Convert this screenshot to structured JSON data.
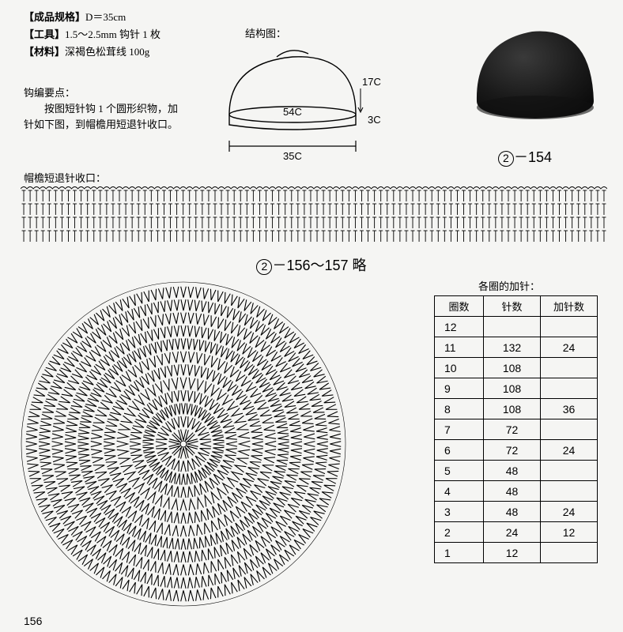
{
  "specs": {
    "line1_label": "【成品规格】",
    "line1_value": "D＝35cm",
    "line2_label": "【工具】",
    "line2_value": "1.5～2.5mm 钩针 1 枚",
    "line3_label": "【材料】",
    "line3_value": "深褐色松茸线 100g"
  },
  "instructions": {
    "title": "钩编要点：",
    "body": "　　按图短针钩 1 个圆形织物，加针如下图，到帽檐用短退针收口。"
  },
  "structure": {
    "label": "结构图：",
    "height_label": "17C",
    "brim_label": "3C",
    "circumference_label": "54C",
    "width_label": "35C"
  },
  "photo_ref": {
    "num": "2",
    "suffix": "－154"
  },
  "brim_section": {
    "label": "帽檐短退针收口：",
    "rows": 4,
    "cols": 92
  },
  "mid_title": {
    "num": "2",
    "suffix": "－156～157 略"
  },
  "table": {
    "title": "各圈的加针：",
    "headers": [
      "圈数",
      "针数",
      "加针数"
    ],
    "rows": [
      {
        "round": "12",
        "stitches": "",
        "increase": ""
      },
      {
        "round": "11",
        "stitches": "132",
        "increase": "24"
      },
      {
        "round": "10",
        "stitches": "108",
        "increase": ""
      },
      {
        "round": "9",
        "stitches": "108",
        "increase": ""
      },
      {
        "round": "8",
        "stitches": "108",
        "increase": "36"
      },
      {
        "round": "7",
        "stitches": "72",
        "increase": ""
      },
      {
        "round": "6",
        "stitches": "72",
        "increase": "24"
      },
      {
        "round": "5",
        "stitches": "48",
        "increase": ""
      },
      {
        "round": "4",
        "stitches": "48",
        "increase": ""
      },
      {
        "round": "3",
        "stitches": "48",
        "increase": "24"
      },
      {
        "round": "2",
        "stitches": "24",
        "increase": "12"
      },
      {
        "round": "1",
        "stitches": "12",
        "increase": ""
      }
    ]
  },
  "circle_chart": {
    "rings": 12,
    "base_stitches": 12,
    "stitch_color": "#000000",
    "bg_color": "#f5f5f3"
  },
  "page_number": "156"
}
